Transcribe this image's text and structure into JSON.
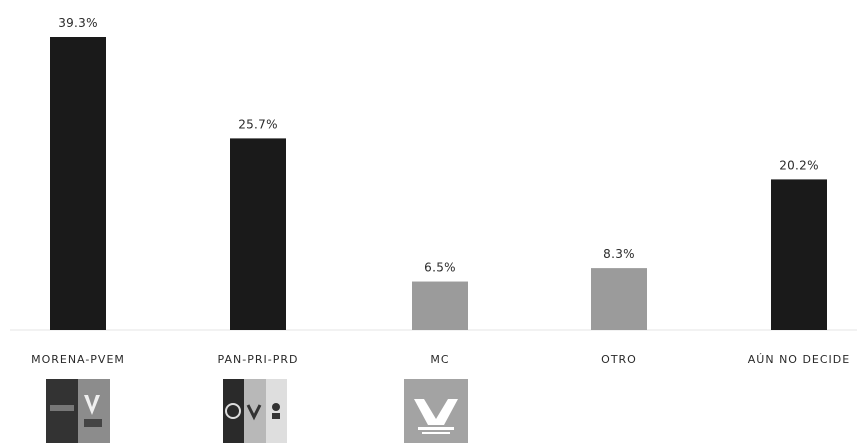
{
  "chart_data": {
    "type": "bar",
    "categories": [
      "MORENA-PVEM",
      "PAN-PRI-PRD",
      "MC",
      "OTRO",
      "AÚN NO DECIDE"
    ],
    "values": [
      39.3,
      25.7,
      6.5,
      8.3,
      20.2
    ],
    "value_labels": [
      "39.3%",
      "25.7%",
      "6.5%",
      "8.3%",
      "20.2%"
    ],
    "bar_colors": [
      "#1a1a1a",
      "#1a1a1a",
      "#9b9b9b",
      "#9b9b9b",
      "#1a1a1a"
    ],
    "title": "",
    "xlabel": "",
    "ylabel": "",
    "ylim": [
      0,
      39.3
    ],
    "grid": false,
    "legend": "none"
  },
  "logos": [
    {
      "icon": "morena-pvem-logo",
      "colors": [
        "#3a3a3a",
        "#8a8a8a"
      ]
    },
    {
      "icon": "pan-pri-prd-logo",
      "colors": [
        "#2a2a2a",
        "#b5b5b5",
        "#dcdcdc"
      ]
    },
    {
      "icon": "mc-logo",
      "colors": [
        "#a0a0a0",
        "#ffffff"
      ]
    }
  ]
}
